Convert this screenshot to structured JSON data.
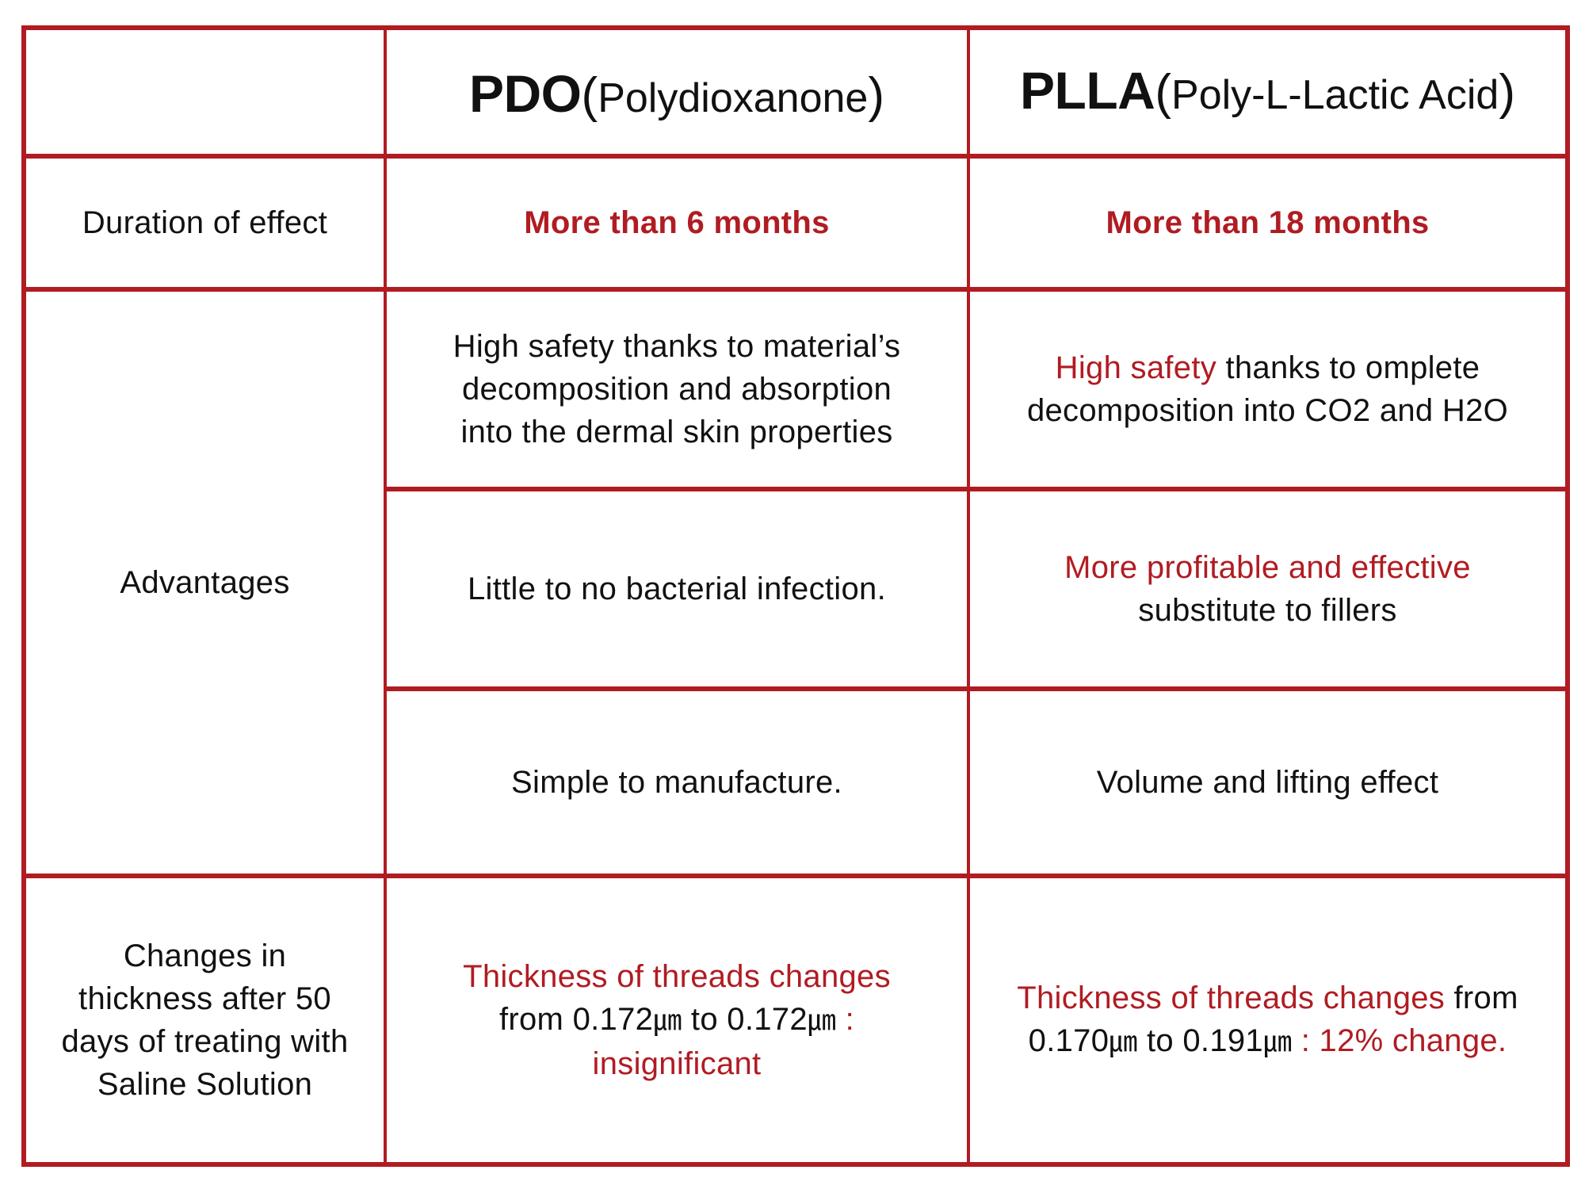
{
  "header": {
    "corner": "",
    "pdo": {
      "abbr": "PDO",
      "open": "(",
      "full": "Polydioxanone",
      "close": ")"
    },
    "plla": {
      "abbr": "PLLA",
      "open": "(",
      "full": "Poly-L-Lactic Acid",
      "close": ")"
    }
  },
  "duration": {
    "label": "Duration of effect",
    "pdo": "More than 6 months",
    "plla": "More than 18 months"
  },
  "advantages": {
    "label": "Advantages",
    "rows": [
      {
        "pdo": [
          "High safety thanks to material’s",
          "decomposition and absorption",
          "into the dermal skin properties"
        ],
        "plla_red": "High safety",
        "plla_rest_line1": " thanks to omplete",
        "plla_line2": "decomposition into CO2 and H2O"
      },
      {
        "pdo": "Little to no bacterial infection.",
        "plla_red": "More profitable and effective",
        "plla_line2": "substitute to fillers"
      },
      {
        "pdo": "Simple to manufacture.",
        "plla": "Volume and lifting effect"
      }
    ]
  },
  "thickness": {
    "label": [
      "Changes in",
      "thickness after 50",
      "days of treating with",
      "Saline Solution"
    ],
    "pdo": {
      "line1": "Thickness of threads changes",
      "line2_a": "from 0.172",
      "unit": "㎛",
      "line2_b": " to 0.172",
      "line2_c": " :",
      "line3": "insignificant"
    },
    "plla": {
      "line1_red": "Thickness of threads changes",
      "line1_rest": " from",
      "line2_a": "0.170",
      "unit": "㎛",
      "line2_b": " to 0.191",
      "line2_c": " : 12% change."
    }
  },
  "colors": {
    "accent_red": "#b01c22",
    "text": "#111111",
    "background": "#ffffff"
  }
}
